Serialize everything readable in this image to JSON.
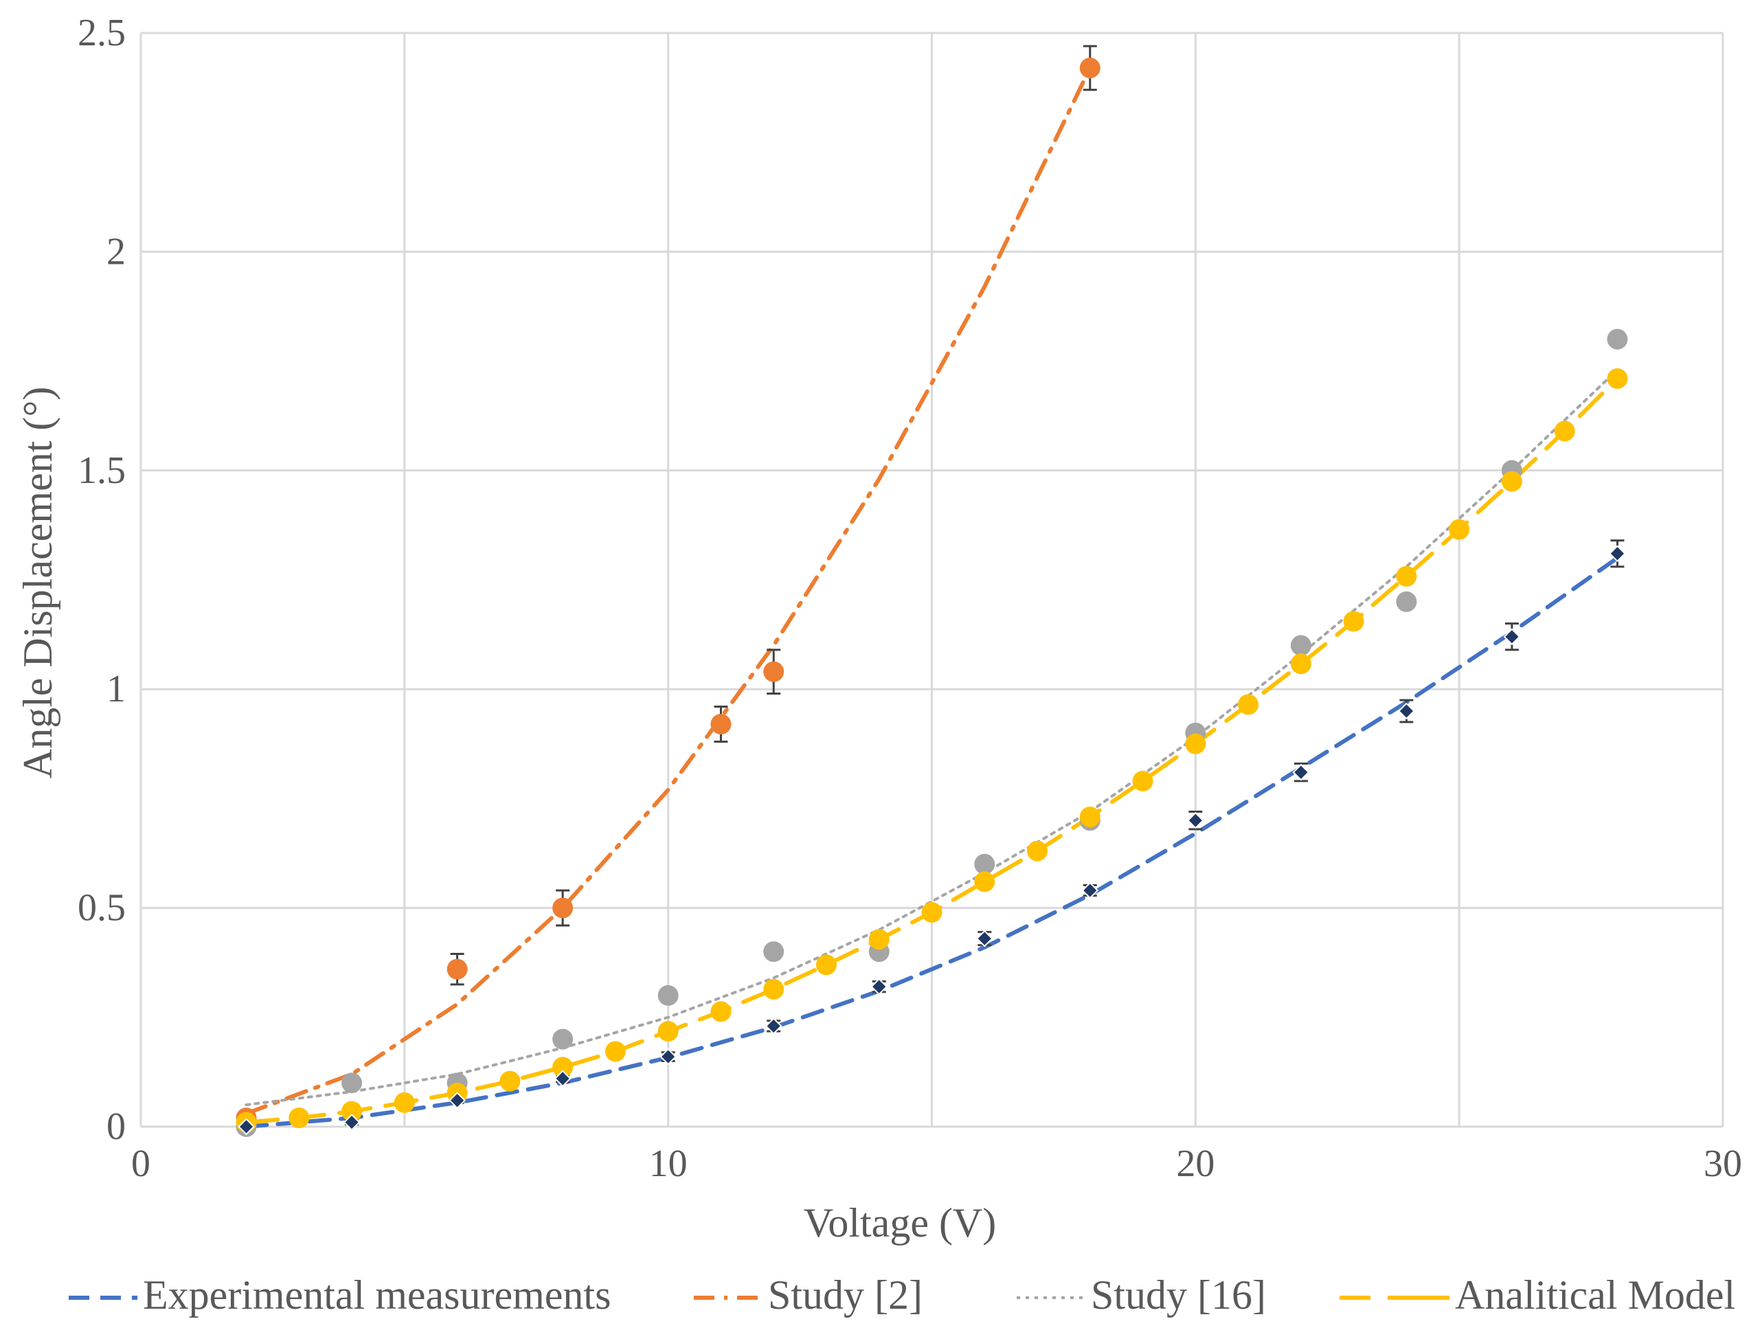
{
  "chart_data": {
    "type": "scatter",
    "title": "",
    "xlabel": "Voltage (V)",
    "ylabel": "Angle Displacement (°)",
    "xlim": [
      0,
      30
    ],
    "ylim": [
      0,
      2.5
    ],
    "xticks": [
      0,
      10,
      20,
      30
    ],
    "yticks": [
      0,
      0.5,
      1,
      1.5,
      2,
      2.5
    ],
    "xtick_labels": [
      "0",
      "10",
      "20",
      "30"
    ],
    "ytick_labels": [
      "0",
      "0.5",
      "1",
      "1.5",
      "2",
      "2.5"
    ],
    "grid": true,
    "legend_position": "bottom",
    "series": [
      {
        "name": "Experimental measurements",
        "color": "#4472C4",
        "marker_color": "#1F3864",
        "marker": "diamond",
        "line_style": "dashed",
        "x": [
          2,
          4,
          6,
          8,
          10,
          12,
          14,
          16,
          18,
          20,
          22,
          24,
          26,
          28
        ],
        "y": [
          0.0,
          0.01,
          0.06,
          0.11,
          0.16,
          0.23,
          0.32,
          0.43,
          0.54,
          0.7,
          0.81,
          0.95,
          1.12,
          1.31
        ],
        "error": [
          0.005,
          0.005,
          0.006,
          0.008,
          0.01,
          0.012,
          0.012,
          0.015,
          0.012,
          0.02,
          0.02,
          0.025,
          0.03,
          0.03
        ],
        "trend_x": [
          2,
          4,
          6,
          8,
          10,
          12,
          14,
          16,
          18,
          20,
          22,
          24,
          26,
          28
        ],
        "trend_y": [
          0.0,
          0.02,
          0.055,
          0.1,
          0.158,
          0.227,
          0.31,
          0.41,
          0.53,
          0.67,
          0.82,
          0.97,
          1.13,
          1.3
        ]
      },
      {
        "name": "Study [2]",
        "color": "#ED7D31",
        "marker_color": "#ED7D31",
        "marker": "circle",
        "line_style": "dash-dot",
        "x": [
          2,
          6,
          8,
          11,
          12,
          18
        ],
        "y": [
          0.02,
          0.36,
          0.5,
          0.92,
          1.04,
          2.42
        ],
        "error": [
          0.01,
          0.035,
          0.04,
          0.04,
          0.05,
          0.05
        ],
        "trend_x": [
          2,
          4,
          6,
          8,
          10,
          12,
          14,
          16,
          18
        ],
        "trend_y": [
          0.03,
          0.12,
          0.28,
          0.5,
          0.77,
          1.1,
          1.48,
          1.92,
          2.42
        ]
      },
      {
        "name": "Study [16]",
        "color": "#A5A5A5",
        "marker_color": "#A5A5A5",
        "marker": "circle",
        "line_style": "dotted",
        "x": [
          2,
          4,
          6,
          8,
          10,
          12,
          14,
          16,
          18,
          20,
          22,
          24,
          26,
          28
        ],
        "y": [
          0.0,
          0.1,
          0.1,
          0.2,
          0.3,
          0.4,
          0.4,
          0.6,
          0.7,
          0.9,
          1.1,
          1.2,
          1.5,
          1.8
        ],
        "trend_x": [
          2,
          4,
          6,
          8,
          10,
          12,
          14,
          16,
          18,
          20,
          22,
          24,
          26,
          28
        ],
        "trend_y": [
          0.05,
          0.08,
          0.12,
          0.18,
          0.25,
          0.34,
          0.45,
          0.58,
          0.72,
          0.89,
          1.08,
          1.28,
          1.5,
          1.73
        ]
      },
      {
        "name": "Analitical Model",
        "color": "#FFC000",
        "marker_color": "#FFC000",
        "marker": "circle",
        "line_style": "long-dash",
        "x": [
          2,
          3,
          4,
          5,
          6,
          7,
          8,
          9,
          10,
          11,
          12,
          13,
          14,
          15,
          16,
          17,
          18,
          19,
          20,
          21,
          22,
          23,
          24,
          25,
          26,
          27,
          28
        ],
        "y": [
          0.01,
          0.02,
          0.035,
          0.055,
          0.077,
          0.104,
          0.136,
          0.172,
          0.218,
          0.263,
          0.314,
          0.37,
          0.428,
          0.49,
          0.56,
          0.63,
          0.708,
          0.79,
          0.875,
          0.965,
          1.058,
          1.155,
          1.258,
          1.365,
          1.475,
          1.59,
          1.71
        ]
      }
    ]
  }
}
